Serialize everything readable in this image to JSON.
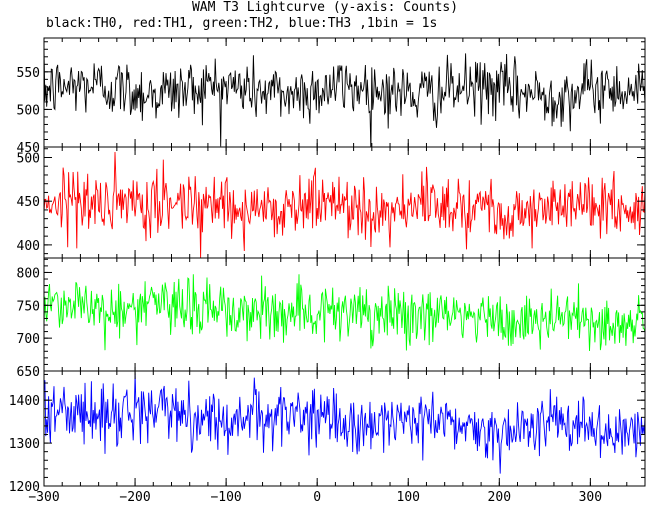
{
  "title": "WAM T3 Lightcurve (y-axis: Counts)",
  "subtitle": "black:TH0, red:TH1, green:TH2, blue:TH3 ,1bin = 1s",
  "chart_data": {
    "type": "line",
    "x": {
      "range": [
        -300,
        360
      ],
      "ticks": [
        -300,
        -200,
        -100,
        0,
        100,
        200,
        300
      ],
      "tick_labels": [
        "−300",
        "−200",
        "−100",
        "0",
        "100",
        "200",
        "300"
      ],
      "bin_seconds": 1
    },
    "panels": [
      {
        "series": "TH0",
        "color": "#000000",
        "ylim": [
          450,
          595
        ],
        "yticks": [
          450,
          500,
          550
        ],
        "mean_start": 528,
        "mean_end": 523,
        "noise_sd": 20
      },
      {
        "series": "TH1",
        "color": "#ff0000",
        "ylim": [
          385,
          512
        ],
        "yticks": [
          400,
          450,
          500
        ],
        "mean_start": 448,
        "mean_end": 441,
        "noise_sd": 18
      },
      {
        "series": "TH2",
        "color": "#00ff00",
        "ylim": [
          650,
          822
        ],
        "yticks": [
          650,
          700,
          750,
          800
        ],
        "mean_start": 752,
        "mean_end": 722,
        "noise_sd": 22
      },
      {
        "series": "TH3",
        "color": "#0000ff",
        "ylim": [
          1200,
          1468
        ],
        "yticks": [
          1200,
          1300,
          1400
        ],
        "mean_start": 1378,
        "mean_end": 1328,
        "noise_sd": 34
      }
    ]
  }
}
